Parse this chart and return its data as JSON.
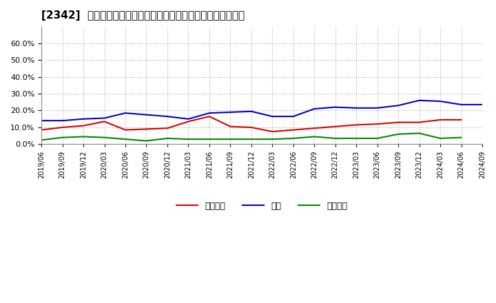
{
  "title": "[2342]  売上債権、在庫、買入債務の総資産に対する比率の推移",
  "x_labels": [
    "2019/06",
    "2019/09",
    "2019/12",
    "2020/03",
    "2020/06",
    "2020/09",
    "2020/12",
    "2021/03",
    "2021/06",
    "2021/09",
    "2021/12",
    "2022/03",
    "2022/06",
    "2022/09",
    "2022/12",
    "2023/03",
    "2023/06",
    "2023/09",
    "2023/12",
    "2024/03",
    "2024/06",
    "2024/09"
  ],
  "uriken": [
    8.5,
    10.0,
    11.0,
    13.5,
    8.5,
    9.0,
    9.5,
    13.5,
    16.5,
    10.5,
    10.0,
    7.5,
    8.5,
    9.5,
    10.5,
    11.5,
    12.0,
    13.0,
    13.0,
    14.5,
    14.5,
    null
  ],
  "zaiko": [
    14.0,
    14.0,
    15.0,
    15.5,
    18.5,
    17.5,
    16.5,
    15.0,
    18.5,
    19.0,
    19.5,
    16.5,
    16.5,
    21.0,
    22.0,
    21.5,
    21.5,
    23.0,
    26.0,
    25.5,
    23.5,
    23.5
  ],
  "kainyu": [
    2.5,
    4.0,
    4.5,
    4.0,
    3.0,
    2.0,
    3.5,
    3.0,
    3.0,
    3.0,
    3.0,
    3.0,
    3.5,
    4.5,
    3.5,
    3.5,
    3.5,
    6.0,
    6.5,
    3.5,
    4.0,
    null
  ],
  "uriken_color": "#dd0000",
  "zaiko_color": "#0000cc",
  "kainyu_color": "#008800",
  "ylim": [
    0.0,
    70.0
  ],
  "yticks": [
    0.0,
    10.0,
    20.0,
    30.0,
    40.0,
    50.0,
    60.0
  ],
  "legend_labels": [
    "売上債権",
    "在庫",
    "買入債務"
  ],
  "bg_color": "#ffffff",
  "plot_bg_color": "#ffffff",
  "grid_color": "#aaaaaa"
}
